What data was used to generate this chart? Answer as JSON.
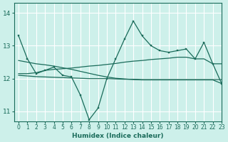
{
  "xlabel": "Humidex (Indice chaleur)",
  "bg_color": "#cdf0ea",
  "grid_color": "#ffffff",
  "line_color": "#1a6b5a",
  "xlim": [
    -0.5,
    23
  ],
  "ylim": [
    10.7,
    14.3
  ],
  "yticks": [
    11,
    12,
    13,
    14
  ],
  "xticks": [
    0,
    1,
    2,
    3,
    4,
    5,
    6,
    7,
    8,
    9,
    10,
    11,
    12,
    13,
    14,
    15,
    16,
    17,
    18,
    19,
    20,
    21,
    22,
    23
  ],
  "lines": [
    {
      "x": [
        0,
        1,
        2,
        3,
        4,
        5,
        6,
        7,
        8,
        9,
        10,
        11,
        12,
        13,
        14,
        15,
        16,
        17,
        18,
        19,
        20,
        21,
        22,
        23
      ],
      "y": [
        13.3,
        12.6,
        12.15,
        12.25,
        12.35,
        12.1,
        12.05,
        11.5,
        10.75,
        11.1,
        12.0,
        12.6,
        13.2,
        13.75,
        13.3,
        13.0,
        12.85,
        12.8,
        12.85,
        12.9,
        12.6,
        13.1,
        12.45,
        11.85
      ],
      "marker": true
    },
    {
      "x": [
        0,
        1,
        2,
        3,
        4,
        5,
        6,
        7,
        8,
        9,
        10,
        11,
        12,
        13,
        14,
        15,
        16,
        17,
        18,
        19,
        20,
        21,
        22,
        23
      ],
      "y": [
        12.15,
        12.15,
        12.18,
        12.25,
        12.28,
        12.3,
        12.32,
        12.35,
        12.38,
        12.4,
        12.43,
        12.46,
        12.5,
        12.53,
        12.55,
        12.58,
        12.6,
        12.62,
        12.65,
        12.65,
        12.6,
        12.6,
        12.45,
        12.45
      ],
      "marker": false
    },
    {
      "x": [
        0,
        1,
        2,
        3,
        4,
        5,
        6,
        7,
        8,
        9,
        10,
        11,
        12,
        13,
        14,
        15,
        16,
        17,
        18,
        19,
        20,
        21,
        22,
        23
      ],
      "y": [
        12.1,
        12.08,
        12.06,
        12.05,
        12.04,
        12.03,
        12.02,
        12.01,
        12.0,
        12.0,
        12.0,
        11.99,
        11.98,
        11.98,
        11.97,
        11.97,
        11.97,
        11.97,
        11.97,
        11.97,
        11.97,
        11.97,
        11.97,
        11.97
      ],
      "marker": false
    },
    {
      "x": [
        0,
        1,
        2,
        3,
        4,
        5,
        6,
        7,
        8,
        9,
        10,
        11,
        12,
        13,
        14,
        15,
        16,
        17,
        18,
        19,
        20,
        21,
        22,
        23
      ],
      "y": [
        12.55,
        12.5,
        12.45,
        12.42,
        12.38,
        12.33,
        12.28,
        12.22,
        12.16,
        12.1,
        12.05,
        12.01,
        11.99,
        11.97,
        11.96,
        11.96,
        11.96,
        11.96,
        11.96,
        11.96,
        11.96,
        11.96,
        11.96,
        11.85
      ],
      "marker": false
    }
  ]
}
